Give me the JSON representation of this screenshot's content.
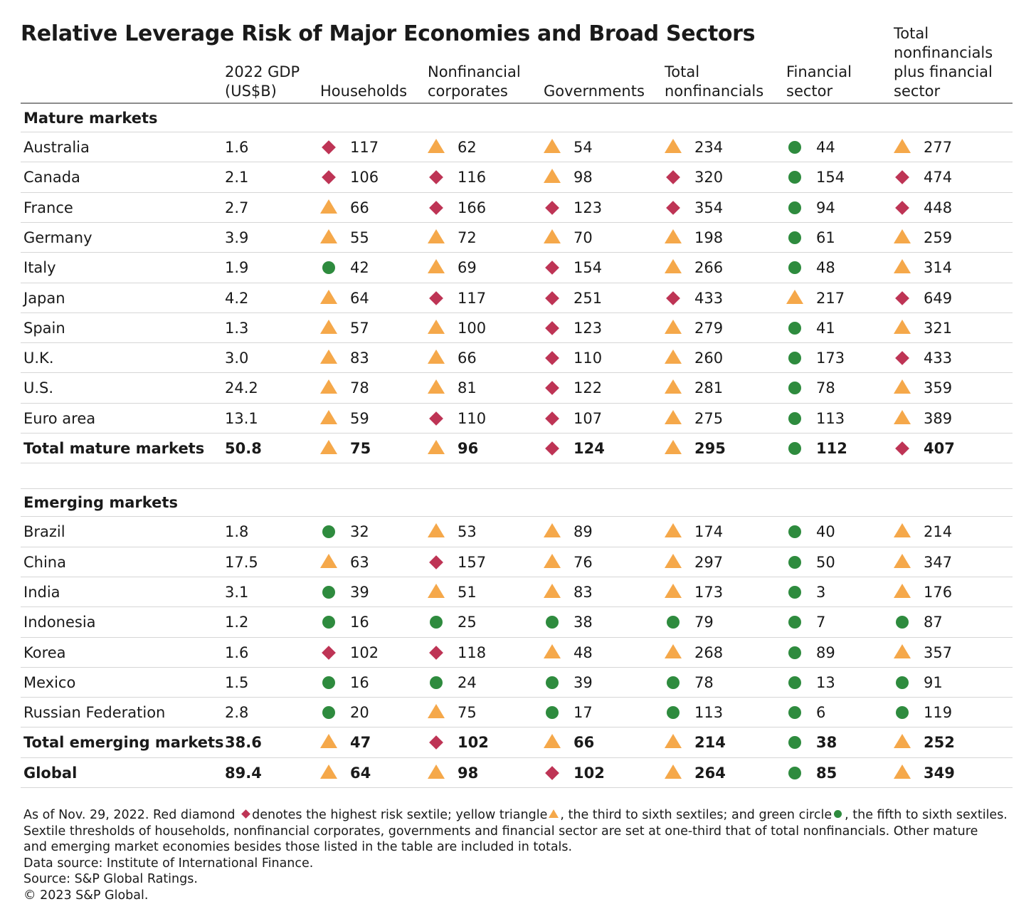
{
  "title": "Relative Leverage Risk of Major Economies and Broad Sectors",
  "legend_colors": {
    "diamond": "#be3455",
    "triangle": "#f5a84a",
    "circle": "#2e8b3e"
  },
  "chart_data": {
    "type": "table",
    "columns": [
      {
        "label": "2022 GDP\n(US$B)"
      },
      {
        "label": "Households"
      },
      {
        "label": "Nonfinancial\ncorporates"
      },
      {
        "label": "Governments"
      },
      {
        "label": "Total\nnonfinancials"
      },
      {
        "label": "Financial\nsector"
      },
      {
        "label": "Total\nnonfinancials\nplus financial\nsector"
      }
    ],
    "sections": [
      {
        "label": "Mature markets",
        "rows": [
          {
            "name": "Australia",
            "gdp": "1.6",
            "values": [
              {
                "m": "diamond",
                "v": "117"
              },
              {
                "m": "triangle",
                "v": "62"
              },
              {
                "m": "triangle",
                "v": "54"
              },
              {
                "m": "triangle",
                "v": "234"
              },
              {
                "m": "circle",
                "v": "44"
              },
              {
                "m": "triangle",
                "v": "277"
              }
            ]
          },
          {
            "name": "Canada",
            "gdp": "2.1",
            "values": [
              {
                "m": "diamond",
                "v": "106"
              },
              {
                "m": "diamond",
                "v": "116"
              },
              {
                "m": "triangle",
                "v": "98"
              },
              {
                "m": "diamond",
                "v": "320"
              },
              {
                "m": "circle",
                "v": "154"
              },
              {
                "m": "diamond",
                "v": "474"
              }
            ]
          },
          {
            "name": "France",
            "gdp": "2.7",
            "values": [
              {
                "m": "triangle",
                "v": "66"
              },
              {
                "m": "diamond",
                "v": "166"
              },
              {
                "m": "diamond",
                "v": "123"
              },
              {
                "m": "diamond",
                "v": "354"
              },
              {
                "m": "circle",
                "v": "94"
              },
              {
                "m": "diamond",
                "v": "448"
              }
            ]
          },
          {
            "name": "Germany",
            "gdp": "3.9",
            "values": [
              {
                "m": "triangle",
                "v": "55"
              },
              {
                "m": "triangle",
                "v": "72"
              },
              {
                "m": "triangle",
                "v": "70"
              },
              {
                "m": "triangle",
                "v": "198"
              },
              {
                "m": "circle",
                "v": "61"
              },
              {
                "m": "triangle",
                "v": "259"
              }
            ]
          },
          {
            "name": "Italy",
            "gdp": "1.9",
            "values": [
              {
                "m": "circle",
                "v": "42"
              },
              {
                "m": "triangle",
                "v": "69"
              },
              {
                "m": "diamond",
                "v": "154"
              },
              {
                "m": "triangle",
                "v": "266"
              },
              {
                "m": "circle",
                "v": "48"
              },
              {
                "m": "triangle",
                "v": "314"
              }
            ]
          },
          {
            "name": "Japan",
            "gdp": "4.2",
            "values": [
              {
                "m": "triangle",
                "v": "64"
              },
              {
                "m": "diamond",
                "v": "117"
              },
              {
                "m": "diamond",
                "v": "251"
              },
              {
                "m": "diamond",
                "v": "433"
              },
              {
                "m": "triangle",
                "v": "217"
              },
              {
                "m": "diamond",
                "v": "649"
              }
            ]
          },
          {
            "name": "Spain",
            "gdp": "1.3",
            "values": [
              {
                "m": "triangle",
                "v": "57"
              },
              {
                "m": "triangle",
                "v": "100"
              },
              {
                "m": "diamond",
                "v": "123"
              },
              {
                "m": "triangle",
                "v": "279"
              },
              {
                "m": "circle",
                "v": "41"
              },
              {
                "m": "triangle",
                "v": "321"
              }
            ]
          },
          {
            "name": "U.K.",
            "gdp": "3.0",
            "values": [
              {
                "m": "triangle",
                "v": "83"
              },
              {
                "m": "triangle",
                "v": "66"
              },
              {
                "m": "diamond",
                "v": "110"
              },
              {
                "m": "triangle",
                "v": "260"
              },
              {
                "m": "circle",
                "v": "173"
              },
              {
                "m": "diamond",
                "v": "433"
              }
            ]
          },
          {
            "name": "U.S.",
            "gdp": "24.2",
            "values": [
              {
                "m": "triangle",
                "v": "78"
              },
              {
                "m": "triangle",
                "v": "81"
              },
              {
                "m": "diamond",
                "v": "122"
              },
              {
                "m": "triangle",
                "v": "281"
              },
              {
                "m": "circle",
                "v": "78"
              },
              {
                "m": "triangle",
                "v": "359"
              }
            ]
          },
          {
            "name": "Euro area",
            "gdp": "13.1",
            "values": [
              {
                "m": "triangle",
                "v": "59"
              },
              {
                "m": "diamond",
                "v": "110"
              },
              {
                "m": "diamond",
                "v": "107"
              },
              {
                "m": "triangle",
                "v": "275"
              },
              {
                "m": "circle",
                "v": "113"
              },
              {
                "m": "triangle",
                "v": "389"
              }
            ]
          },
          {
            "name": "Total mature markets",
            "gdp": "50.8",
            "bold": true,
            "values": [
              {
                "m": "triangle",
                "v": "75"
              },
              {
                "m": "triangle",
                "v": "96"
              },
              {
                "m": "diamond",
                "v": "124"
              },
              {
                "m": "triangle",
                "v": "295"
              },
              {
                "m": "circle",
                "v": "112"
              },
              {
                "m": "diamond",
                "v": "407"
              }
            ]
          }
        ]
      },
      {
        "label": "Emerging markets",
        "rows": [
          {
            "name": "Brazil",
            "gdp": "1.8",
            "values": [
              {
                "m": "circle",
                "v": "32"
              },
              {
                "m": "triangle",
                "v": "53"
              },
              {
                "m": "triangle",
                "v": "89"
              },
              {
                "m": "triangle",
                "v": "174"
              },
              {
                "m": "circle",
                "v": "40"
              },
              {
                "m": "triangle",
                "v": "214"
              }
            ]
          },
          {
            "name": "China",
            "gdp": "17.5",
            "values": [
              {
                "m": "triangle",
                "v": "63"
              },
              {
                "m": "diamond",
                "v": "157"
              },
              {
                "m": "triangle",
                "v": "76"
              },
              {
                "m": "triangle",
                "v": "297"
              },
              {
                "m": "circle",
                "v": "50"
              },
              {
                "m": "triangle",
                "v": "347"
              }
            ]
          },
          {
            "name": "India",
            "gdp": "3.1",
            "values": [
              {
                "m": "circle",
                "v": "39"
              },
              {
                "m": "triangle",
                "v": "51"
              },
              {
                "m": "triangle",
                "v": "83"
              },
              {
                "m": "triangle",
                "v": "173"
              },
              {
                "m": "circle",
                "v": "3"
              },
              {
                "m": "triangle",
                "v": "176"
              }
            ]
          },
          {
            "name": "Indonesia",
            "gdp": "1.2",
            "values": [
              {
                "m": "circle",
                "v": "16"
              },
              {
                "m": "circle",
                "v": "25"
              },
              {
                "m": "circle",
                "v": "38"
              },
              {
                "m": "circle",
                "v": "79"
              },
              {
                "m": "circle",
                "v": "7"
              },
              {
                "m": "circle",
                "v": "87"
              }
            ]
          },
          {
            "name": "Korea",
            "gdp": "1.6",
            "values": [
              {
                "m": "diamond",
                "v": "102"
              },
              {
                "m": "diamond",
                "v": "118"
              },
              {
                "m": "triangle",
                "v": "48"
              },
              {
                "m": "triangle",
                "v": "268"
              },
              {
                "m": "circle",
                "v": "89"
              },
              {
                "m": "triangle",
                "v": "357"
              }
            ]
          },
          {
            "name": "Mexico",
            "gdp": "1.5",
            "values": [
              {
                "m": "circle",
                "v": "16"
              },
              {
                "m": "circle",
                "v": "24"
              },
              {
                "m": "circle",
                "v": "39"
              },
              {
                "m": "circle",
                "v": "78"
              },
              {
                "m": "circle",
                "v": "13"
              },
              {
                "m": "circle",
                "v": "91"
              }
            ]
          },
          {
            "name": "Russian Federation",
            "gdp": "2.8",
            "values": [
              {
                "m": "circle",
                "v": "20"
              },
              {
                "m": "triangle",
                "v": "75"
              },
              {
                "m": "circle",
                "v": "17"
              },
              {
                "m": "circle",
                "v": "113"
              },
              {
                "m": "circle",
                "v": "6"
              },
              {
                "m": "circle",
                "v": "119"
              }
            ]
          },
          {
            "name": "Total emerging markets",
            "gdp": "38.6",
            "bold": true,
            "values": [
              {
                "m": "triangle",
                "v": "47"
              },
              {
                "m": "diamond",
                "v": "102"
              },
              {
                "m": "triangle",
                "v": "66"
              },
              {
                "m": "triangle",
                "v": "214"
              },
              {
                "m": "circle",
                "v": "38"
              },
              {
                "m": "triangle",
                "v": "252"
              }
            ]
          },
          {
            "name": "Global",
            "gdp": "89.4",
            "bold": true,
            "values": [
              {
                "m": "triangle",
                "v": "64"
              },
              {
                "m": "triangle",
                "v": "98"
              },
              {
                "m": "diamond",
                "v": "102"
              },
              {
                "m": "triangle",
                "v": "264"
              },
              {
                "m": "circle",
                "v": "85"
              },
              {
                "m": "triangle",
                "v": "349"
              }
            ]
          }
        ]
      }
    ]
  },
  "footnote": {
    "line1_a": "As of Nov. 29, 2022. Red diamond",
    "line1_b": "denotes the highest risk sextile; yellow triangle",
    "line1_c": ", the third to sixth sextiles; and green circle",
    "line1_d": ", the fifth to sixth sextiles.",
    "line2": "Sextile thresholds of households, nonfinancial corporates, governments and financial sector are set at one-third that of total nonfinancials. Other mature",
    "line3": "and emerging market economies besides those listed in the table are included in totals.",
    "data_source": "Data source: Institute of International Finance.",
    "source": "Source: S&P Global Ratings.",
    "copyright": "© 2023 S&P Global."
  }
}
